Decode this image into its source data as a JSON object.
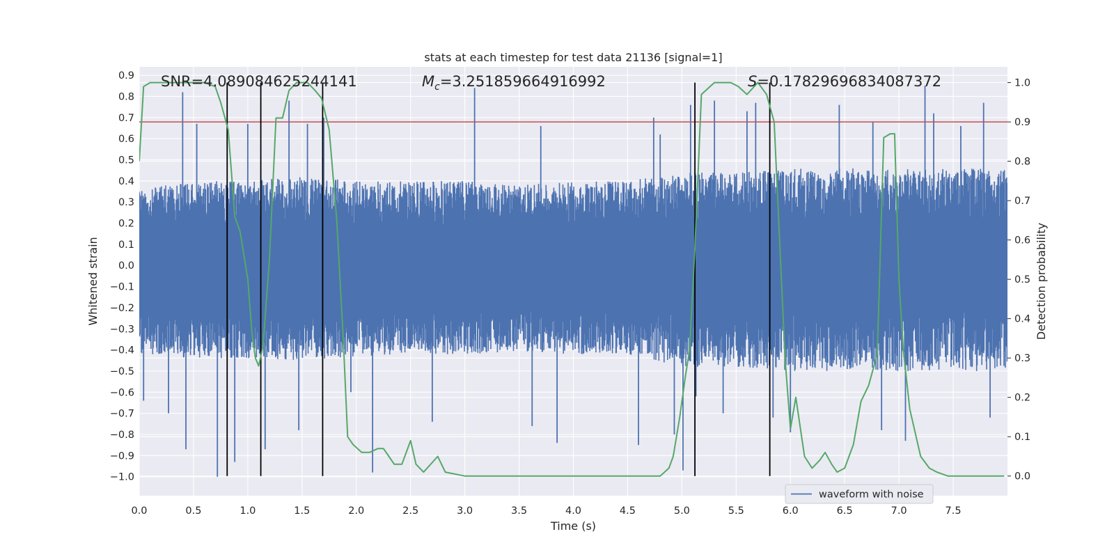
{
  "chart_data": {
    "type": "line",
    "title": "stats at each timestep for test data 21136 [signal=1]",
    "xlabel": "Time (s)",
    "ylabel_left": "Whitened strain",
    "ylabel_right": "Detection probability",
    "xlim": [
      0.0,
      8.0
    ],
    "ylim_left": [
      -1.09,
      0.94
    ],
    "ylim_right": [
      -0.05,
      1.04
    ],
    "xticks": [
      "0.0",
      "0.5",
      "1.0",
      "1.5",
      "2.0",
      "2.5",
      "3.0",
      "3.5",
      "4.0",
      "4.5",
      "5.0",
      "5.5",
      "6.0",
      "6.5",
      "7.0",
      "7.5"
    ],
    "yticks_left": [
      "0.9",
      "0.8",
      "0.7",
      "0.6",
      "0.5",
      "0.4",
      "0.3",
      "0.2",
      "0.1",
      "0.0",
      "−0.1",
      "−0.2",
      "−0.3",
      "−0.4",
      "−0.5",
      "−0.6",
      "−0.7",
      "−0.8",
      "−0.9",
      "−1.0"
    ],
    "yticks_right": [
      "1.0",
      "0.9",
      "0.8",
      "0.7",
      "0.6",
      "0.5",
      "0.4",
      "0.3",
      "0.2",
      "0.1",
      "0.0"
    ],
    "grid": true,
    "legend": {
      "location": "lower-right",
      "entries": [
        "waveform with noise"
      ]
    },
    "annotations": {
      "snr": "SNR=4.089084625244141",
      "mc_symbol": "M",
      "mc_sub": "c",
      "mc_value": "=3.251859664916992",
      "s_symbol": "S",
      "s_value": "=0.17829696834087372"
    },
    "threshold": {
      "value": 0.9,
      "axis": "right",
      "color": "#c44e52"
    },
    "vertical_markers": [
      0.81,
      1.12,
      1.69,
      5.12,
      5.81
    ],
    "series": [
      {
        "name": "waveform with noise",
        "axis": "left",
        "color": "#4c72b0",
        "envelope": {
          "t": [
            0.0,
            0.5,
            1.0,
            1.5,
            2.0,
            2.5,
            3.0,
            3.5,
            4.0,
            4.5,
            5.0,
            5.5,
            6.0,
            6.5,
            7.0,
            7.5,
            8.0
          ],
          "upper": [
            0.36,
            0.4,
            0.4,
            0.42,
            0.4,
            0.4,
            0.4,
            0.38,
            0.4,
            0.4,
            0.44,
            0.44,
            0.46,
            0.46,
            0.46,
            0.46,
            0.46
          ],
          "lower": [
            -0.42,
            -0.44,
            -0.44,
            -0.45,
            -0.43,
            -0.42,
            -0.42,
            -0.41,
            -0.42,
            -0.42,
            -0.48,
            -0.48,
            -0.5,
            -0.5,
            -0.5,
            -0.5,
            -0.5
          ]
        },
        "spikes": [
          [
            0.04,
            -0.64
          ],
          [
            0.27,
            -0.7
          ],
          [
            0.4,
            0.82
          ],
          [
            0.43,
            -0.87
          ],
          [
            0.53,
            0.67
          ],
          [
            0.72,
            -1.0
          ],
          [
            0.88,
            -0.93
          ],
          [
            1.0,
            0.67
          ],
          [
            1.16,
            -0.87
          ],
          [
            1.38,
            0.78
          ],
          [
            1.47,
            -0.78
          ],
          [
            1.55,
            0.67
          ],
          [
            1.7,
            0.7
          ],
          [
            1.95,
            -0.6
          ],
          [
            2.15,
            -0.98
          ],
          [
            2.7,
            -0.74
          ],
          [
            3.09,
            0.84
          ],
          [
            3.62,
            -0.76
          ],
          [
            3.7,
            0.66
          ],
          [
            3.85,
            -0.84
          ],
          [
            4.6,
            -0.85
          ],
          [
            4.74,
            0.7
          ],
          [
            4.8,
            0.62
          ],
          [
            4.93,
            -0.8
          ],
          [
            5.01,
            -0.97
          ],
          [
            5.08,
            0.76
          ],
          [
            5.13,
            -0.62
          ],
          [
            5.3,
            0.78
          ],
          [
            5.38,
            -0.7
          ],
          [
            5.6,
            0.73
          ],
          [
            5.68,
            0.77
          ],
          [
            5.84,
            -0.72
          ],
          [
            6.0,
            -0.79
          ],
          [
            6.45,
            0.76
          ],
          [
            6.76,
            0.68
          ],
          [
            6.84,
            -0.78
          ],
          [
            7.06,
            -0.83
          ],
          [
            7.24,
            0.85
          ],
          [
            7.32,
            0.72
          ],
          [
            7.57,
            0.66
          ],
          [
            7.78,
            0.77
          ],
          [
            7.84,
            -0.72
          ]
        ]
      },
      {
        "name": "detection probability",
        "axis": "right",
        "color": "#55a868",
        "x": [
          0.0,
          0.04,
          0.1,
          0.3,
          0.5,
          0.6,
          0.7,
          0.75,
          0.82,
          0.88,
          0.93,
          1.0,
          1.04,
          1.07,
          1.1,
          1.14,
          1.2,
          1.26,
          1.32,
          1.38,
          1.45,
          1.55,
          1.62,
          1.68,
          1.75,
          1.82,
          1.88,
          1.92,
          1.97,
          2.05,
          2.12,
          2.2,
          2.25,
          2.3,
          2.35,
          2.42,
          2.5,
          2.55,
          2.62,
          2.75,
          2.82,
          3.0,
          3.3,
          3.6,
          4.0,
          4.5,
          4.8,
          4.88,
          4.92,
          4.98,
          5.03,
          5.07,
          5.12,
          5.18,
          5.3,
          5.45,
          5.52,
          5.6,
          5.7,
          5.78,
          5.85,
          5.95,
          6.0,
          6.05,
          6.13,
          6.2,
          6.27,
          6.32,
          6.38,
          6.43,
          6.5,
          6.58,
          6.65,
          6.72,
          6.8,
          6.86,
          6.92,
          6.96,
          7.0,
          7.04,
          7.1,
          7.2,
          7.28,
          7.35,
          7.45,
          7.55,
          7.62,
          7.7,
          7.97
        ],
        "values": [
          0.8,
          0.99,
          1.0,
          1.0,
          1.0,
          1.0,
          0.99,
          0.95,
          0.88,
          0.66,
          0.62,
          0.5,
          0.36,
          0.3,
          0.28,
          0.33,
          0.55,
          0.91,
          0.91,
          0.98,
          1.0,
          1.0,
          0.98,
          0.96,
          0.88,
          0.65,
          0.35,
          0.1,
          0.08,
          0.06,
          0.06,
          0.07,
          0.07,
          0.05,
          0.03,
          0.03,
          0.09,
          0.03,
          0.01,
          0.05,
          0.01,
          0.0,
          0.0,
          0.0,
          0.0,
          0.0,
          0.0,
          0.02,
          0.05,
          0.15,
          0.25,
          0.32,
          0.58,
          0.97,
          1.0,
          1.0,
          0.99,
          0.97,
          1.0,
          0.97,
          0.9,
          0.3,
          0.12,
          0.2,
          0.05,
          0.02,
          0.04,
          0.06,
          0.03,
          0.01,
          0.02,
          0.08,
          0.19,
          0.23,
          0.31,
          0.86,
          0.87,
          0.87,
          0.5,
          0.32,
          0.17,
          0.05,
          0.02,
          0.01,
          0.0,
          0.0,
          0.0,
          0.0,
          0.0
        ]
      }
    ]
  }
}
